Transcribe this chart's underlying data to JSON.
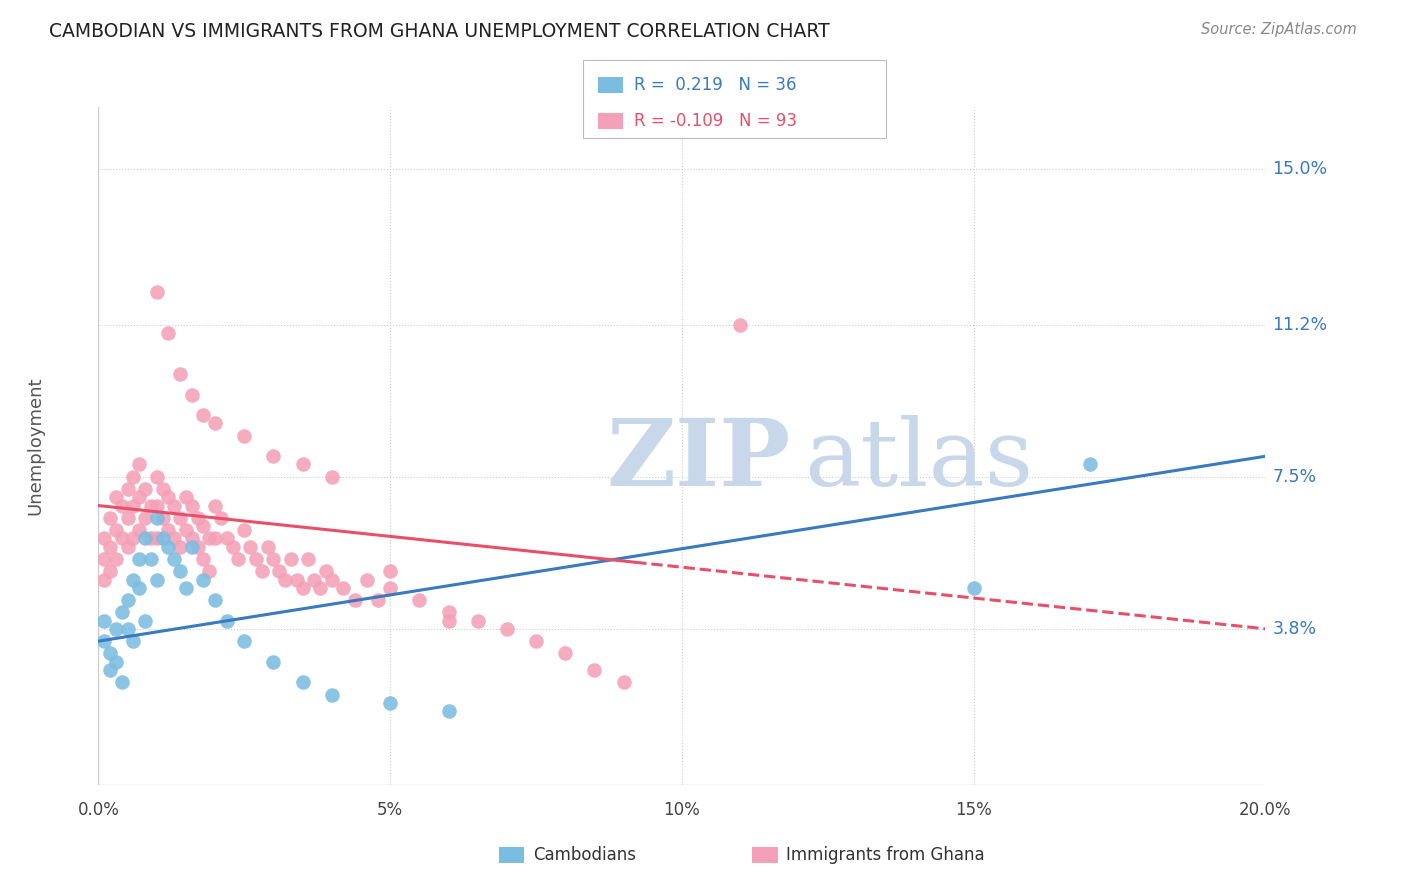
{
  "title": "CAMBODIAN VS IMMIGRANTS FROM GHANA UNEMPLOYMENT CORRELATION CHART",
  "source": "Source: ZipAtlas.com",
  "ylabel": "Unemployment",
  "ytick_labels": [
    "15.0%",
    "11.2%",
    "7.5%",
    "3.8%"
  ],
  "ytick_values": [
    0.15,
    0.112,
    0.075,
    0.038
  ],
  "xtick_labels": [
    "0.0%",
    "5%",
    "10%",
    "15%",
    "20.0%"
  ],
  "xtick_values": [
    0.0,
    0.05,
    0.1,
    0.15,
    0.2
  ],
  "xlim": [
    0.0,
    0.2
  ],
  "ylim": [
    0.0,
    0.165
  ],
  "legend_r_cambodian": "R =  0.219",
  "legend_n_cambodian": "N = 36",
  "legend_r_ghana": "R = -0.109",
  "legend_n_ghana": "N = 93",
  "color_cambodian": "#7bbde0",
  "color_ghana": "#f4a0b8",
  "color_line_cambodian": "#3a7abf",
  "color_line_ghana": "#e8506a",
  "watermark_zip": "ZIP",
  "watermark_atlas": "atlas",
  "watermark_color": "#c8d8ea",
  "cambodian_x": [
    0.001,
    0.001,
    0.002,
    0.002,
    0.003,
    0.003,
    0.004,
    0.004,
    0.005,
    0.005,
    0.006,
    0.006,
    0.007,
    0.007,
    0.008,
    0.008,
    0.009,
    0.01,
    0.01,
    0.011,
    0.012,
    0.013,
    0.014,
    0.015,
    0.016,
    0.018,
    0.02,
    0.022,
    0.025,
    0.03,
    0.035,
    0.04,
    0.05,
    0.06,
    0.15,
    0.17
  ],
  "cambodian_y": [
    0.04,
    0.035,
    0.032,
    0.028,
    0.038,
    0.03,
    0.042,
    0.025,
    0.045,
    0.038,
    0.05,
    0.035,
    0.055,
    0.048,
    0.06,
    0.04,
    0.055,
    0.065,
    0.05,
    0.06,
    0.058,
    0.055,
    0.052,
    0.048,
    0.058,
    0.05,
    0.045,
    0.04,
    0.035,
    0.03,
    0.025,
    0.022,
    0.02,
    0.018,
    0.048,
    0.078
  ],
  "ghana_x": [
    0.001,
    0.001,
    0.001,
    0.002,
    0.002,
    0.002,
    0.003,
    0.003,
    0.003,
    0.004,
    0.004,
    0.005,
    0.005,
    0.005,
    0.006,
    0.006,
    0.006,
    0.007,
    0.007,
    0.007,
    0.008,
    0.008,
    0.009,
    0.009,
    0.01,
    0.01,
    0.01,
    0.011,
    0.011,
    0.012,
    0.012,
    0.013,
    0.013,
    0.014,
    0.014,
    0.015,
    0.015,
    0.016,
    0.016,
    0.017,
    0.017,
    0.018,
    0.018,
    0.019,
    0.019,
    0.02,
    0.02,
    0.021,
    0.022,
    0.023,
    0.024,
    0.025,
    0.026,
    0.027,
    0.028,
    0.029,
    0.03,
    0.031,
    0.032,
    0.033,
    0.034,
    0.035,
    0.036,
    0.037,
    0.038,
    0.039,
    0.04,
    0.042,
    0.044,
    0.046,
    0.048,
    0.05,
    0.055,
    0.06,
    0.065,
    0.07,
    0.075,
    0.08,
    0.085,
    0.09,
    0.01,
    0.012,
    0.014,
    0.016,
    0.018,
    0.02,
    0.025,
    0.03,
    0.035,
    0.04,
    0.05,
    0.06,
    0.11
  ],
  "ghana_y": [
    0.06,
    0.055,
    0.05,
    0.065,
    0.058,
    0.052,
    0.07,
    0.062,
    0.055,
    0.068,
    0.06,
    0.072,
    0.065,
    0.058,
    0.075,
    0.068,
    0.06,
    0.078,
    0.07,
    0.062,
    0.072,
    0.065,
    0.068,
    0.06,
    0.075,
    0.068,
    0.06,
    0.072,
    0.065,
    0.07,
    0.062,
    0.068,
    0.06,
    0.065,
    0.058,
    0.07,
    0.062,
    0.068,
    0.06,
    0.065,
    0.058,
    0.063,
    0.055,
    0.06,
    0.052,
    0.068,
    0.06,
    0.065,
    0.06,
    0.058,
    0.055,
    0.062,
    0.058,
    0.055,
    0.052,
    0.058,
    0.055,
    0.052,
    0.05,
    0.055,
    0.05,
    0.048,
    0.055,
    0.05,
    0.048,
    0.052,
    0.05,
    0.048,
    0.045,
    0.05,
    0.045,
    0.052,
    0.045,
    0.042,
    0.04,
    0.038,
    0.035,
    0.032,
    0.028,
    0.025,
    0.12,
    0.11,
    0.1,
    0.095,
    0.09,
    0.088,
    0.085,
    0.08,
    0.078,
    0.075,
    0.048,
    0.04,
    0.112
  ]
}
